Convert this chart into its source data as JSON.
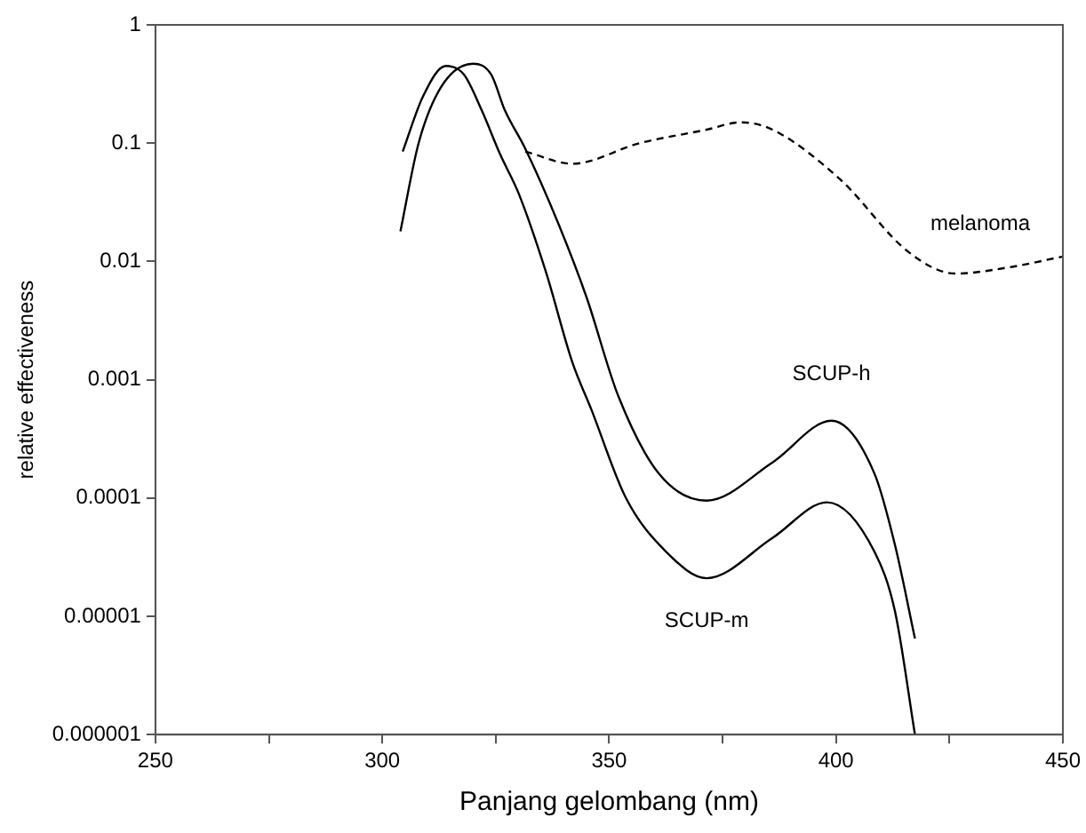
{
  "chart_data": {
    "type": "line",
    "xlabel": "Panjang gelombang (nm)",
    "ylabel": "relative effectiveness",
    "log": "y",
    "grid": false,
    "legend": false,
    "marker": "none",
    "xlim": [
      250,
      450
    ],
    "xticks": [
      250,
      {
        "value": 275,
        "label": null
      },
      300,
      {
        "value": 325,
        "label": null
      },
      350,
      {
        "value": 375,
        "label": null
      },
      400,
      {
        "value": 425,
        "label": null
      },
      450
    ],
    "ylim": [
      1e-06,
      1
    ],
    "yticks": [
      {
        "value": 1e-06,
        "label": "0.000001"
      },
      {
        "value": 1e-05,
        "label": "0.00001"
      },
      {
        "value": 0.0001,
        "label": "0.0001"
      },
      0.001,
      0.01,
      0.1,
      1
    ],
    "series": [
      {
        "name": "SCUP-m",
        "color": "#000000",
        "line_style": "solid",
        "x": [
          304.5,
          309,
          314,
          318,
          321.9,
          326,
          330,
          336,
          341.9,
          346,
          353.7,
          362.6,
          371.5,
          386,
          398,
          408.5,
          413,
          417.4
        ],
        "values": [
          0.085,
          0.25,
          0.45,
          0.38,
          0.19,
          0.08,
          0.038,
          0.0083,
          0.0014,
          0.00057,
          0.0001,
          3.5e-05,
          2.1e-05,
          4.6e-05,
          9.2e-05,
          3.5e-05,
          1.1e-05,
          1e-06
        ]
      },
      {
        "name": "SCUP-h",
        "color": "#000000",
        "line_style": "solid",
        "x": [
          304,
          308,
          313,
          320,
          324,
          327,
          331.5,
          339,
          345,
          352,
          361,
          371.5,
          386,
          399,
          408.5,
          413,
          417.4
        ],
        "values": [
          0.018,
          0.1,
          0.3,
          0.47,
          0.38,
          0.19,
          0.09,
          0.02,
          0.005,
          0.00073,
          0.00016,
          9.5e-05,
          0.0002,
          0.00045,
          0.00016,
          4e-05,
          6.5e-06
        ]
      },
      {
        "name": "melanoma",
        "color": "#000000",
        "line_style": "dashed",
        "x": [
          331.5,
          341.9,
          356.7,
          371.5,
          378.9,
          386,
          401,
          416,
          426.3,
          438,
          450
        ],
        "values": [
          0.085,
          0.067,
          0.1,
          0.13,
          0.15,
          0.13,
          0.049,
          0.012,
          0.0079,
          0.0089,
          0.011
        ]
      }
    ]
  }
}
